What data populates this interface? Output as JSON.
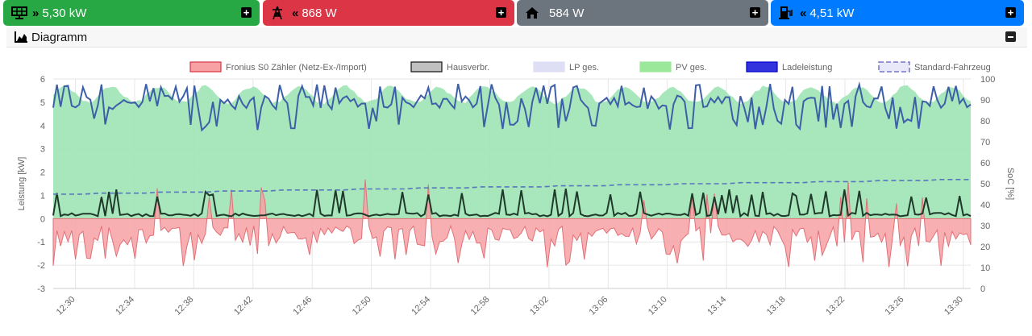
{
  "tiles": [
    {
      "id": "pv",
      "value": "5,30 kW",
      "color": "#28a745",
      "icon": "solar-panel-icon",
      "arrow": "»"
    },
    {
      "id": "grid",
      "value": "868 W",
      "color": "#dc3545",
      "icon": "power-tower-icon",
      "arrow": "«"
    },
    {
      "id": "house",
      "value": "584 W",
      "color": "#6c757d",
      "icon": "home-icon",
      "arrow": ""
    },
    {
      "id": "charge",
      "value": "4,51 kW",
      "color": "#007bff",
      "icon": "charging-station-icon",
      "arrow": "«"
    }
  ],
  "panel": {
    "title": "Diagramm",
    "icon": "area-chart-icon"
  },
  "chart_data": {
    "type": "area",
    "legend": [
      {
        "name": "Fronius S0 Zähler (Netz-Ex-/Import)",
        "fill": "#f7a1a5",
        "stroke": "#dc3545"
      },
      {
        "name": "Hausverbr.",
        "fill": "#c0c0c0",
        "stroke": "#111111"
      },
      {
        "name": "LP ges.",
        "fill": "#dedef5",
        "stroke": "#dedef5"
      },
      {
        "name": "PV ges.",
        "fill": "#9be89b",
        "stroke": "#9be89b"
      },
      {
        "name": "Ladeleistung",
        "fill": "#3333dd",
        "stroke": "#0000cc"
      },
      {
        "name": "Standard-Fahrzeug",
        "fill": "#e8e8f8",
        "stroke": "#7777cc",
        "dashed": true
      }
    ],
    "legend_position": "top",
    "ylabel": "Leistung [kW]",
    "y2label": "SoC [%]",
    "ylim": [
      -3,
      6
    ],
    "y2lim": [
      0,
      100
    ],
    "yticks": [
      -3,
      -2,
      -1,
      0,
      1,
      2,
      3,
      4,
      5,
      6
    ],
    "y2ticks": [
      0,
      10,
      20,
      30,
      40,
      50,
      60,
      70,
      80,
      90,
      100
    ],
    "xticks": [
      "12:30",
      "12:34",
      "12:38",
      "12:42",
      "12:46",
      "12:50",
      "12:54",
      "12:58",
      "13:02",
      "13:06",
      "13:10",
      "13:14",
      "13:18",
      "13:22",
      "13:26",
      "13:30"
    ],
    "xrange_minutes": [
      0,
      62
    ],
    "grid": true
  }
}
